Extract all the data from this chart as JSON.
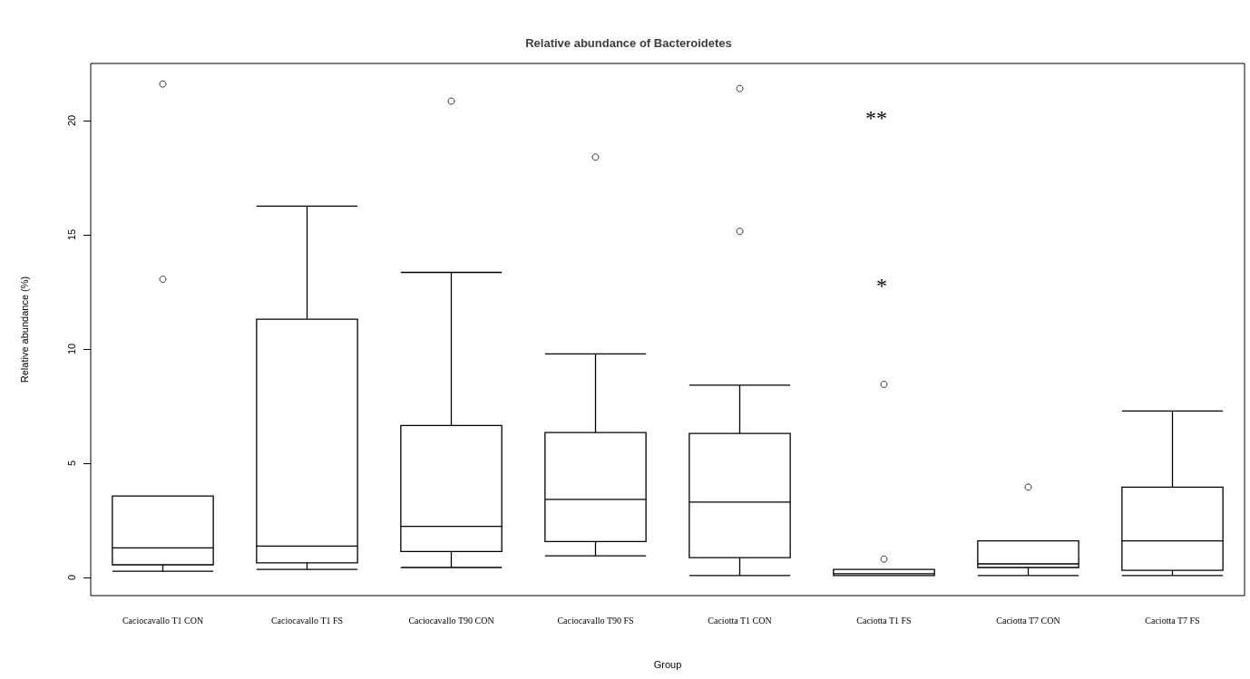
{
  "chart_data": {
    "type": "box",
    "title": "Relative abundance of Bacteroidetes",
    "xlabel": "Group",
    "ylabel": "Relative abundance (%)",
    "categories": [
      "Caciocavallo T1 CON",
      "Caciocavallo T1 FS",
      "Caciocavallo T90 CON",
      "Caciocavallo T90 FS",
      "Caciotta T1 CON",
      "Caciotta T1 FS",
      "Caciotta T7 CON",
      "Caciotta T7 FS"
    ],
    "boxes": [
      {
        "low": 0.27,
        "q1": 0.55,
        "median": 1.29,
        "q3": 3.56,
        "high": 3.56,
        "outliers": [
          13.05,
          21.6
        ]
      },
      {
        "low": 0.35,
        "q1": 0.63,
        "median": 1.37,
        "q3": 11.3,
        "high": 16.25
      },
      {
        "low": 0.43,
        "q1": 1.13,
        "median": 2.23,
        "q3": 6.65,
        "high": 13.35,
        "outliers": [
          20.85
        ]
      },
      {
        "low": 0.94,
        "q1": 1.57,
        "median": 3.41,
        "q3": 6.34,
        "high": 9.78,
        "outliers": [
          18.4
        ]
      },
      {
        "low": 0.08,
        "q1": 0.86,
        "median": 3.29,
        "q3": 6.3,
        "high": 8.41,
        "outliers": [
          15.15,
          21.4
        ]
      },
      {
        "low": 0.08,
        "q1": 0.08,
        "median": 0.16,
        "q3": 0.35,
        "high": 0.35,
        "outliers": [
          0.8,
          8.45
        ]
      },
      {
        "low": 0.08,
        "q1": 0.43,
        "median": 0.59,
        "q3": 1.6,
        "high": 1.6,
        "outliers": [
          3.95
        ]
      },
      {
        "low": 0.08,
        "q1": 0.31,
        "median": 1.6,
        "q3": 3.95,
        "high": 7.28
      }
    ],
    "ylim": [
      -0.8,
      22.5
    ],
    "yticks": [
      0,
      5,
      10,
      15,
      20
    ],
    "marker": "circle",
    "annotations": [
      "**",
      "*"
    ]
  }
}
